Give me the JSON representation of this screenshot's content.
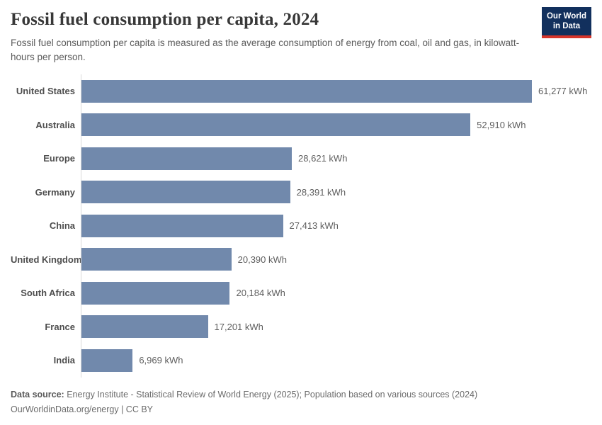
{
  "header": {
    "title": "Fossil fuel consumption per capita, 2024",
    "subtitle": "Fossil fuel consumption per capita is measured as the average consumption of energy from coal, oil and gas, in kilowatt-hours per person.",
    "logo": {
      "line1": "Our World",
      "line2": "in Data"
    }
  },
  "chart_data": {
    "type": "bar",
    "orientation": "horizontal",
    "title": "Fossil fuel consumption per capita, 2024",
    "categories": [
      "United States",
      "Australia",
      "Europe",
      "Germany",
      "China",
      "United Kingdom",
      "South Africa",
      "France",
      "India"
    ],
    "values": [
      61277,
      52910,
      28621,
      28391,
      27413,
      20390,
      20184,
      17201,
      6969
    ],
    "value_labels": [
      "61,277 kWh",
      "52,910 kWh",
      "28,621 kWh",
      "28,391 kWh",
      "27,413 kWh",
      "20,390 kWh",
      "20,184 kWh",
      "17,201 kWh",
      "6,969 kWh"
    ],
    "unit": "kWh",
    "xlim": [
      0,
      61277
    ],
    "grid": false,
    "legend": false,
    "bar_color": "#7189ac",
    "axis_line_color": "#d9d9d9"
  },
  "footer": {
    "data_source_label": "Data source:",
    "data_source_text": " Energy Institute - Statistical Review of World Energy (2025); Population based on various sources (2024)",
    "link_line": "OurWorldinData.org/energy | CC BY"
  },
  "colors": {
    "bar": "#7189ac",
    "logo_background": "#12305d",
    "logo_stripe": "#d6352b",
    "title_text": "#383838"
  }
}
